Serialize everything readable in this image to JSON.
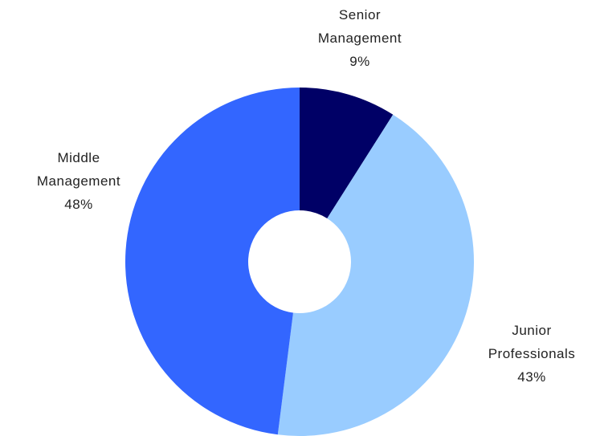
{
  "chart_data": {
    "type": "donut",
    "categories": [
      "Senior Management",
      "Junior Professionals",
      "Middle Management"
    ],
    "values": [
      9,
      43,
      48
    ],
    "value_labels": [
      "9%",
      "43%",
      "48%"
    ],
    "colors": [
      "#000066",
      "#99ccff",
      "#3366ff"
    ]
  }
}
